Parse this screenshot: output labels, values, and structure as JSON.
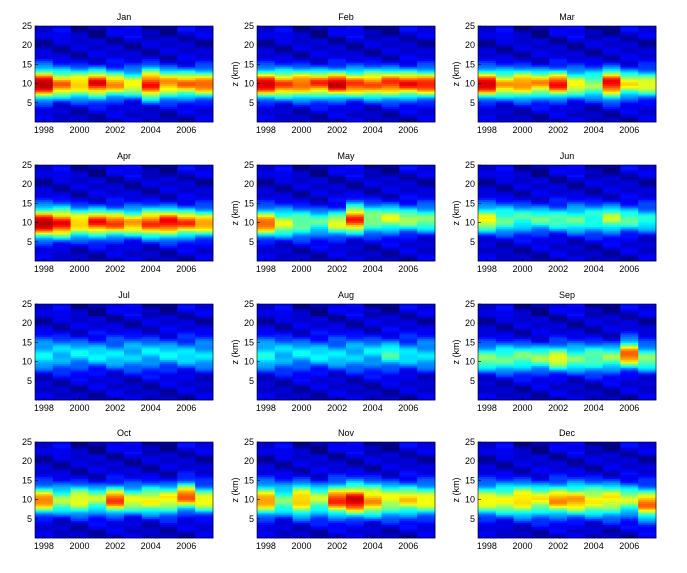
{
  "chart_data": {
    "type": "heatmap",
    "colormap": "jet",
    "shared": {
      "ylabel": "z (km)",
      "x_range": [
        1997.5,
        2007.5
      ],
      "y_range": [
        0,
        25
      ],
      "xticks": [
        1998,
        2000,
        2002,
        2004,
        2006
      ],
      "xtick_labels": [
        "1998",
        "2000",
        "2002",
        "2004",
        "2006"
      ],
      "yticks": [
        5,
        10,
        15,
        20,
        25
      ],
      "ytick_labels": [
        "5",
        "10",
        "15",
        "20",
        "25"
      ],
      "years": [
        1998,
        1999,
        2000,
        2001,
        2002,
        2003,
        2004,
        2005,
        2006,
        2007
      ],
      "color_range": [
        0,
        1
      ]
    },
    "panels": [
      {
        "title": "Jan",
        "peak_intensity": [
          0.95,
          0.78,
          0.72,
          0.88,
          0.72,
          0.62,
          0.88,
          0.75,
          0.75,
          0.78
        ],
        "peak_height_km": [
          10,
          10,
          10,
          10,
          10,
          10,
          10,
          10,
          10,
          10
        ],
        "layer_width_km": [
          3.8,
          3.5,
          3.5,
          3.5,
          3.5,
          3.5,
          3.8,
          3.5,
          3.5,
          3.5
        ]
      },
      {
        "title": "Feb",
        "peak_intensity": [
          0.92,
          0.82,
          0.82,
          0.82,
          0.92,
          0.82,
          0.82,
          0.85,
          0.85,
          0.85
        ],
        "peak_height_km": [
          10,
          10,
          10,
          10,
          10,
          10,
          10,
          10,
          10,
          10
        ],
        "layer_width_km": [
          3.5,
          3.5,
          3.5,
          3.5,
          3.5,
          3.5,
          3.5,
          3.5,
          3.5,
          3.5
        ]
      },
      {
        "title": "Mar",
        "peak_intensity": [
          0.92,
          0.72,
          0.78,
          0.72,
          0.85,
          0.62,
          0.55,
          0.9,
          0.62,
          0.6
        ],
        "peak_height_km": [
          10,
          10,
          10,
          10,
          10,
          10,
          10,
          10,
          10,
          10
        ],
        "layer_width_km": [
          3.5,
          3.5,
          3.5,
          3.5,
          3.5,
          3.5,
          3.5,
          3.5,
          3.5,
          3.5
        ]
      },
      {
        "title": "Apr",
        "peak_intensity": [
          0.95,
          0.88,
          0.72,
          0.85,
          0.8,
          0.72,
          0.85,
          0.9,
          0.8,
          0.72
        ],
        "peak_height_km": [
          10,
          10,
          10,
          10,
          10,
          10,
          10,
          10,
          10,
          10
        ],
        "layer_width_km": [
          3.8,
          3.8,
          3.5,
          3.5,
          3.5,
          3.5,
          3.5,
          3.5,
          3.5,
          3.5
        ]
      },
      {
        "title": "May",
        "peak_intensity": [
          0.78,
          0.6,
          0.52,
          0.45,
          0.58,
          0.85,
          0.55,
          0.58,
          0.52,
          0.5
        ],
        "peak_height_km": [
          10,
          10,
          10,
          10,
          10,
          11,
          11,
          11,
          11,
          11
        ],
        "layer_width_km": [
          3.5,
          3.5,
          3.5,
          3.5,
          3.5,
          3.5,
          3.5,
          3.5,
          3.5,
          3.5
        ]
      },
      {
        "title": "Jun",
        "peak_intensity": [
          0.62,
          0.5,
          0.45,
          0.45,
          0.45,
          0.48,
          0.45,
          0.55,
          0.45,
          0.4
        ],
        "peak_height_km": [
          11,
          11,
          11,
          11,
          11,
          11,
          11,
          11,
          11,
          11
        ],
        "layer_width_km": [
          3.5,
          3.5,
          3.5,
          3.5,
          3.5,
          3.5,
          3.5,
          3.5,
          3.5,
          3.5
        ]
      },
      {
        "title": "Jul",
        "peak_intensity": [
          0.38,
          0.35,
          0.35,
          0.35,
          0.35,
          0.35,
          0.35,
          0.35,
          0.35,
          0.35
        ],
        "peak_height_km": [
          12,
          12,
          12,
          12,
          12,
          12,
          12,
          12,
          12,
          12
        ],
        "layer_width_km": [
          4,
          4,
          4,
          4,
          4,
          4,
          4,
          4,
          4,
          4
        ]
      },
      {
        "title": "Aug",
        "peak_intensity": [
          0.4,
          0.35,
          0.35,
          0.35,
          0.35,
          0.35,
          0.35,
          0.42,
          0.35,
          0.35
        ],
        "peak_height_km": [
          12,
          12,
          12,
          12,
          12,
          12,
          12,
          12,
          12,
          12
        ],
        "layer_width_km": [
          4,
          4,
          4,
          4,
          4,
          4,
          4,
          4,
          4,
          4
        ]
      },
      {
        "title": "Sep",
        "peak_intensity": [
          0.5,
          0.5,
          0.5,
          0.5,
          0.6,
          0.5,
          0.5,
          0.5,
          0.78,
          0.5
        ],
        "peak_height_km": [
          11,
          11,
          11,
          11,
          11,
          11,
          11,
          11,
          12,
          11
        ],
        "layer_width_km": [
          3.5,
          3.5,
          3.5,
          3.5,
          3.5,
          3.5,
          3.5,
          3.5,
          3.5,
          3.5
        ]
      },
      {
        "title": "Oct",
        "peak_intensity": [
          0.75,
          0.55,
          0.65,
          0.55,
          0.8,
          0.6,
          0.65,
          0.65,
          0.78,
          0.62
        ],
        "peak_height_km": [
          10,
          10,
          10,
          10,
          10,
          10,
          10,
          10,
          11,
          10
        ],
        "layer_width_km": [
          3.5,
          3.5,
          3.5,
          3.5,
          3.5,
          3.5,
          3.5,
          3.5,
          3.5,
          3.5
        ]
      },
      {
        "title": "Nov",
        "peak_intensity": [
          0.72,
          0.5,
          0.72,
          0.55,
          0.82,
          0.92,
          0.75,
          0.62,
          0.65,
          0.62
        ],
        "peak_height_km": [
          10,
          10,
          10,
          10,
          10,
          10,
          10,
          10,
          10,
          10
        ],
        "layer_width_km": [
          4,
          4,
          4,
          4,
          4,
          4,
          4,
          4,
          4,
          4
        ]
      },
      {
        "title": "Dec",
        "peak_intensity": [
          0.62,
          0.62,
          0.7,
          0.62,
          0.72,
          0.72,
          0.65,
          0.65,
          0.55,
          0.75
        ],
        "peak_height_km": [
          10,
          10,
          10,
          10,
          10,
          10,
          10,
          10,
          10,
          9
        ],
        "layer_width_km": [
          4,
          4,
          4,
          4,
          4,
          4,
          4,
          4,
          4,
          4
        ]
      }
    ]
  }
}
